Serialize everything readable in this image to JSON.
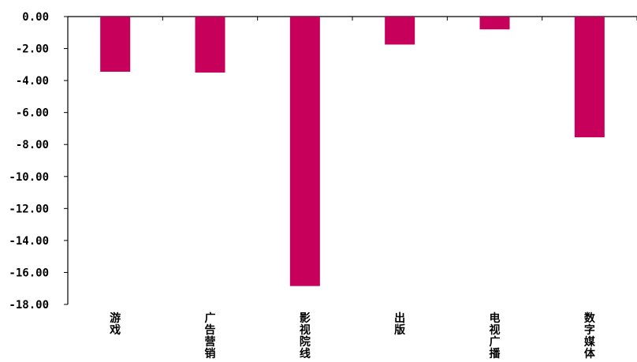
{
  "chart_data": {
    "type": "bar",
    "categories": [
      "游戏",
      "广告营销",
      "影视院线",
      "出版",
      "电视广播",
      "数字媒体"
    ],
    "values": [
      -3.45,
      -3.5,
      -16.85,
      -1.75,
      -0.8,
      -7.55
    ],
    "ylim": [
      -18,
      0
    ],
    "yticks": [
      "0.00",
      "-2.00",
      "-4.00",
      "-6.00",
      "-8.00",
      "-10.00",
      "-12.00",
      "-14.00",
      "-16.00",
      "-18.00"
    ],
    "bar_color": "#C7005B",
    "grid": false,
    "legend": "none"
  }
}
